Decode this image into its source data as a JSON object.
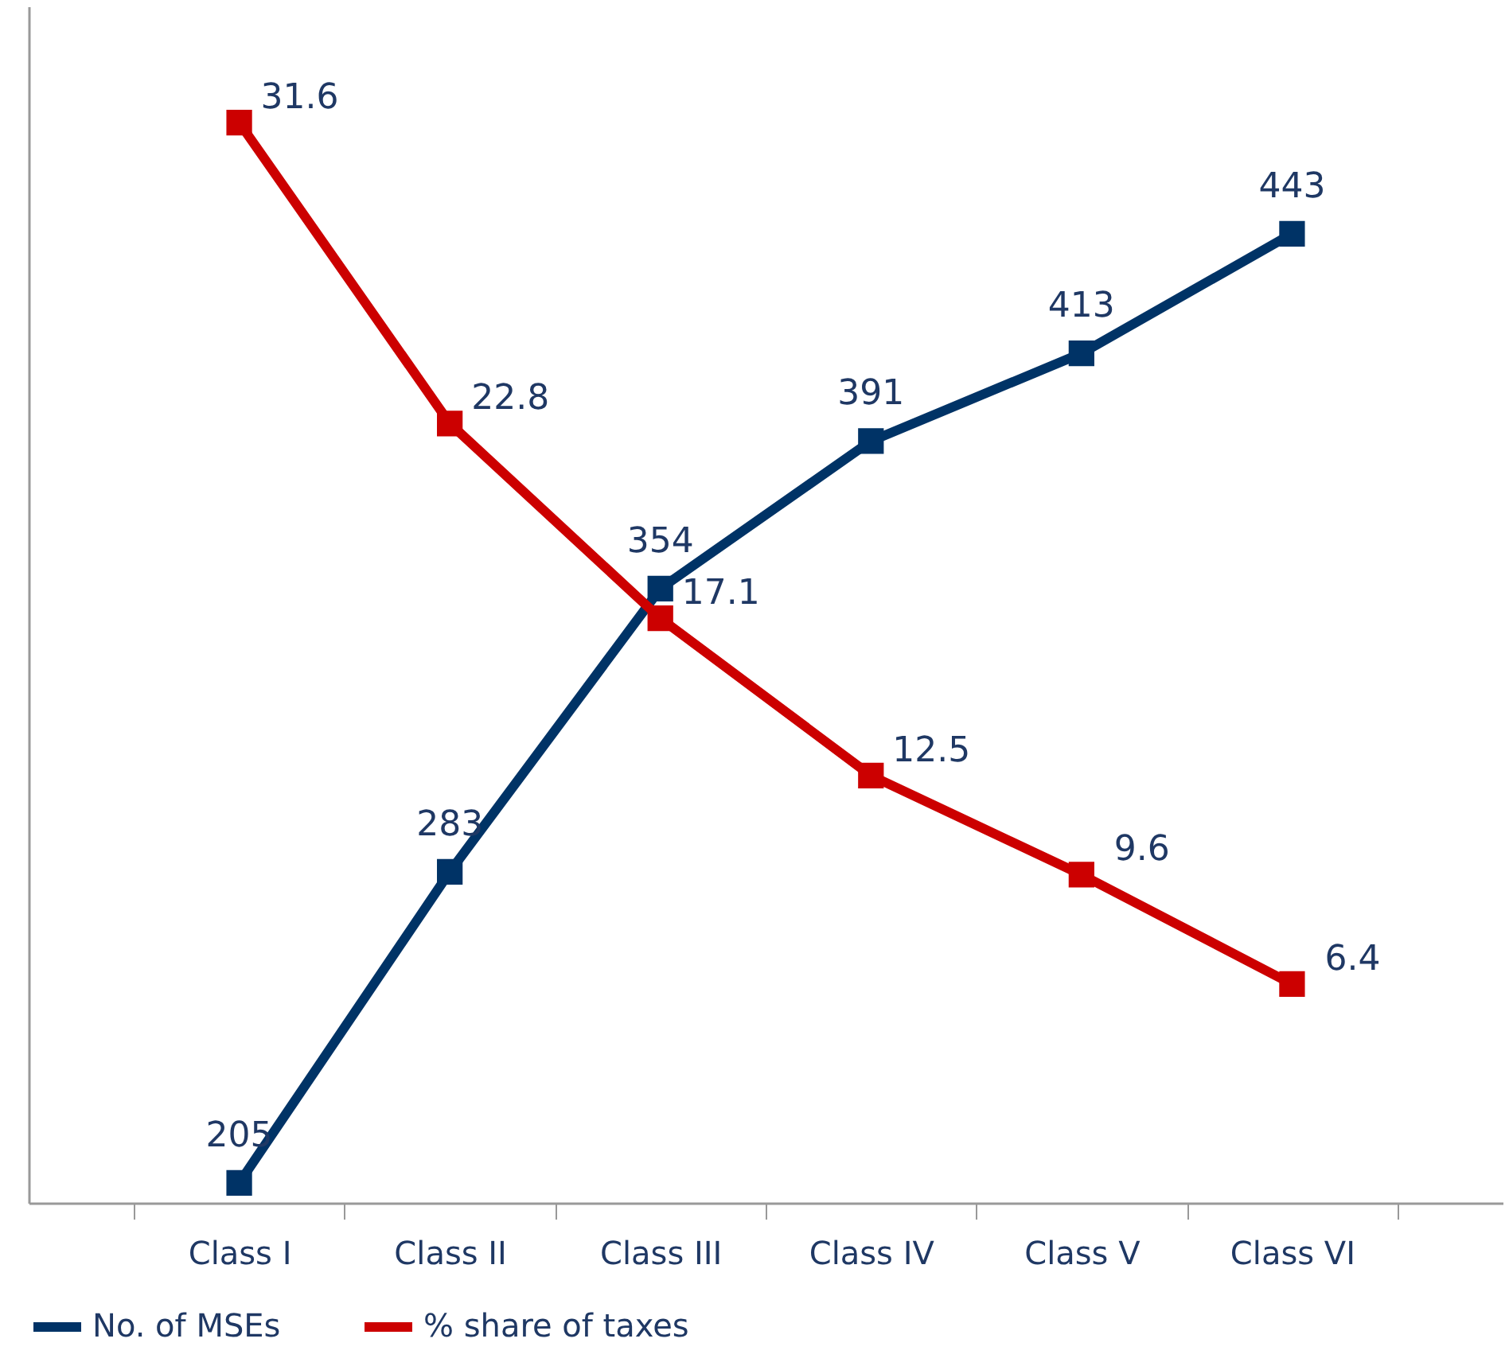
{
  "chart_data": {
    "type": "line",
    "categories": [
      "Class I",
      "Class II",
      "Class III",
      "Class IV",
      "Class V",
      "Class VI"
    ],
    "series": [
      {
        "name": "No. of MSEs",
        "color": "#003366",
        "values": [
          205,
          283,
          354,
          391,
          413,
          443
        ]
      },
      {
        "name": "% share of taxes",
        "color": "#cc0000",
        "values": [
          31.6,
          22.8,
          17.1,
          12.5,
          9.6,
          6.4
        ],
        "axis": "y2"
      }
    ],
    "ylim": [
      200,
      500
    ],
    "tick_labels": "x",
    "data_labels": true,
    "legend": "bottom",
    "marker": "square",
    "line_style": "solid",
    "grid": false
  }
}
